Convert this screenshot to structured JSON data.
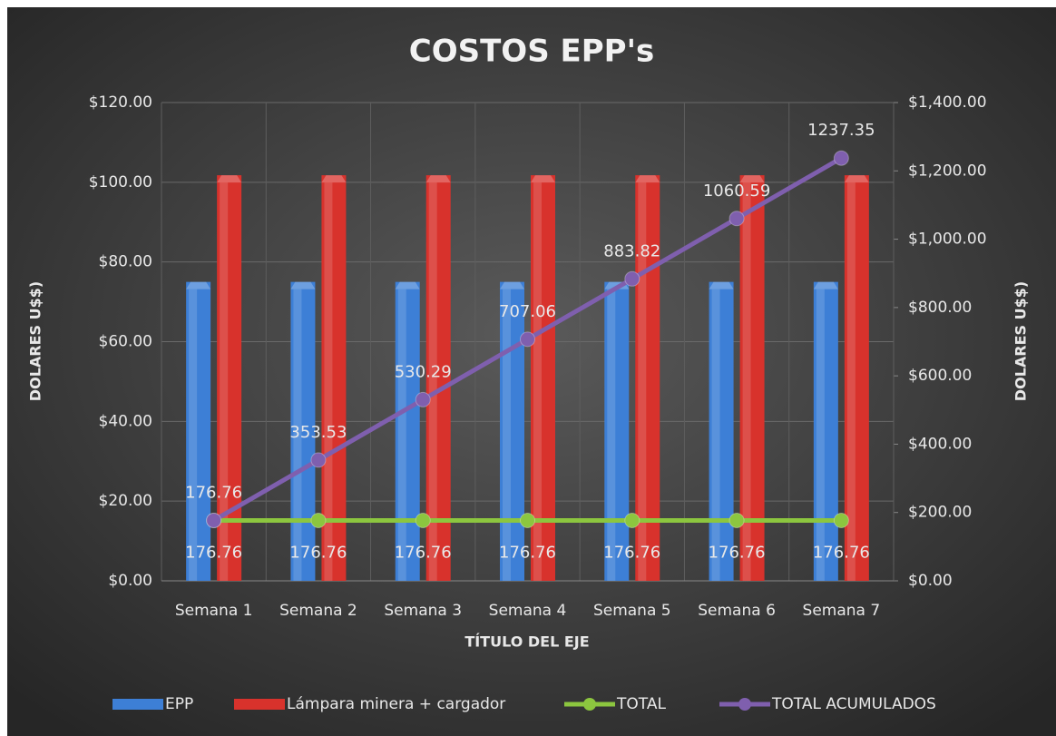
{
  "chart_data": {
    "type": "bar",
    "title": "COSTOS EPP's",
    "x_label": "TÍTULO DEL EJE",
    "y_label": "DOLARES U$$)",
    "y2_label": "DOLARES U$$)",
    "categories": [
      "Semana 1",
      "Semana 2",
      "Semana 3",
      "Semana 4",
      "Semana 5",
      "Semana 6",
      "Semana 7"
    ],
    "series": [
      {
        "name": "EPP",
        "type": "bar",
        "color": "#3d7fd6",
        "values": [
          75,
          75,
          75,
          75,
          75,
          75,
          75
        ]
      },
      {
        "name": "Lámpara minera  + cargador",
        "type": "bar",
        "color": "#d8322c",
        "values": [
          101.76,
          101.76,
          101.76,
          101.76,
          101.76,
          101.76,
          101.76
        ]
      },
      {
        "name": "TOTAL",
        "type": "line",
        "axis": "y2",
        "color": "#8cc63f",
        "label_position": "below",
        "values": [
          176.76,
          176.76,
          176.76,
          176.76,
          176.76,
          176.76,
          176.76
        ]
      },
      {
        "name": "TOTAL ACUMULADOS",
        "type": "line",
        "axis": "y2",
        "color": "#7f5fae",
        "label_position": "above",
        "values": [
          176.76,
          353.53,
          530.29,
          707.06,
          883.82,
          1060.59,
          1237.35
        ]
      }
    ],
    "ylim": [
      0,
      120
    ],
    "yticks": [
      {
        "value": 0,
        "label": "$0.00"
      },
      {
        "value": 20,
        "label": "$20.00"
      },
      {
        "value": 40,
        "label": "$40.00"
      },
      {
        "value": 60,
        "label": "$60.00"
      },
      {
        "value": 80,
        "label": "$80.00"
      },
      {
        "value": 100,
        "label": "$100.00"
      },
      {
        "value": 120,
        "label": "$120.00"
      }
    ],
    "y2lim": [
      0,
      1400
    ],
    "y2ticks": [
      {
        "value": 0,
        "label": "$0.00"
      },
      {
        "value": 200,
        "label": "$200.00"
      },
      {
        "value": 400,
        "label": "$400.00"
      },
      {
        "value": 600,
        "label": "$600.00"
      },
      {
        "value": 800,
        "label": "$800.00"
      },
      {
        "value": 1000,
        "label": "$1,000.00"
      },
      {
        "value": 1200,
        "label": "$1,200.00"
      },
      {
        "value": 1400,
        "label": "$1,400.00"
      }
    ],
    "grid": true,
    "legend": "bottom"
  }
}
